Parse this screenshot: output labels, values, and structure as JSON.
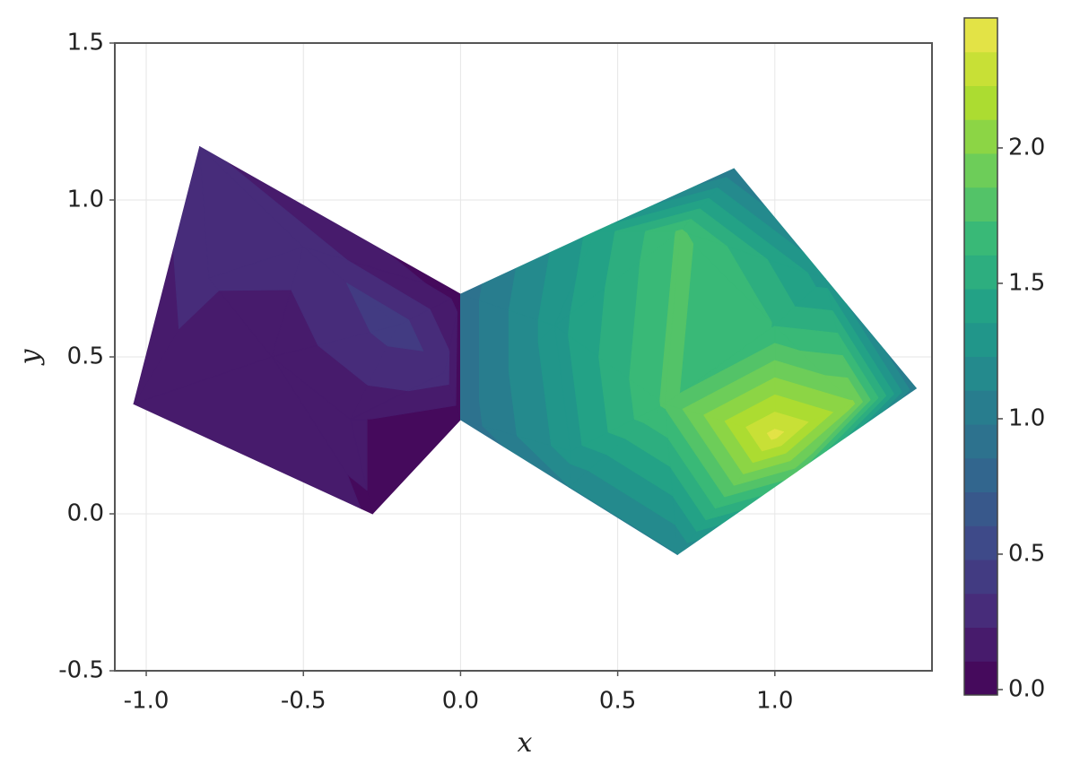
{
  "chart_data": {
    "type": "contourf",
    "x_label": "x",
    "y_label": "y",
    "xlim": [
      -1.1,
      1.5
    ],
    "ylim": [
      -0.5,
      1.5
    ],
    "xticks": [
      {
        "value": -1,
        "label": "-1.0"
      },
      -0.5,
      {
        "value": 0,
        "label": "0.0"
      },
      0.5,
      {
        "value": 1,
        "label": "1.0"
      }
    ],
    "yticks": [
      -0.5,
      {
        "value": 0,
        "label": "0.0"
      },
      0.5,
      {
        "value": 1,
        "label": "1.0"
      },
      1.5
    ],
    "grid": true,
    "x": [
      -1.04,
      -0.83,
      0,
      0,
      -0.28,
      -0.6,
      -0.5,
      -0.2,
      -0.8,
      -0.35,
      -0.05,
      0,
      0,
      0.87,
      1.45,
      0.69,
      0.3,
      0.7,
      0.65,
      1.0,
      1.0,
      0.35,
      1.25,
      0.43,
      1.16,
      1.07,
      0.345
    ],
    "y": [
      0.35,
      1.17,
      0.7,
      0.3,
      0,
      0.5,
      0.85,
      0.6,
      0.75,
      0.3,
      0.45,
      0.3,
      0.7,
      1.1,
      0.4,
      -0.13,
      0.6,
      0.9,
      0.35,
      0.6,
      0.25,
      0.2,
      0.35,
      0.9,
      0.75,
      0.135,
      0.085
    ],
    "z": [
      0.2,
      0.25,
      0.05,
      0.02,
      0.1,
      0.12,
      0.3,
      0.42,
      0.25,
      0.12,
      0.3,
      0.9,
      0.9,
      1.0,
      1.0,
      1.1,
      1.3,
      1.75,
      1.75,
      1.6,
      2.4,
      1.3,
      2.0,
      1.4,
      1.3,
      1.8,
      1.1
    ],
    "triangles": [
      [
        0,
        8,
        5
      ],
      [
        0,
        1,
        8
      ],
      [
        8,
        1,
        6
      ],
      [
        8,
        6,
        5
      ],
      [
        1,
        2,
        6
      ],
      [
        6,
        2,
        7
      ],
      [
        6,
        7,
        5
      ],
      [
        5,
        7,
        9
      ],
      [
        7,
        10,
        9
      ],
      [
        7,
        2,
        10
      ],
      [
        2,
        3,
        10
      ],
      [
        10,
        3,
        9
      ],
      [
        9,
        3,
        4
      ],
      [
        5,
        9,
        4
      ],
      [
        0,
        5,
        4
      ],
      [
        11,
        12,
        16
      ],
      [
        12,
        23,
        16
      ],
      [
        23,
        17,
        16
      ],
      [
        23,
        13,
        17
      ],
      [
        13,
        24,
        17
      ],
      [
        17,
        24,
        19
      ],
      [
        24,
        14,
        22
      ],
      [
        24,
        22,
        19
      ],
      [
        19,
        22,
        20
      ],
      [
        22,
        14,
        25
      ],
      [
        22,
        25,
        20
      ],
      [
        20,
        25,
        15
      ],
      [
        18,
        20,
        15
      ],
      [
        18,
        15,
        26
      ],
      [
        21,
        18,
        26
      ],
      [
        11,
        21,
        26
      ],
      [
        11,
        16,
        21
      ],
      [
        16,
        18,
        21
      ],
      [
        16,
        17,
        18
      ],
      [
        17,
        19,
        18
      ],
      [
        19,
        20,
        18
      ]
    ],
    "levels": 20,
    "colormap": [
      "#440154",
      "#482878",
      "#3e4989",
      "#31688e",
      "#26828e",
      "#1f9e89",
      "#35b779",
      "#6ece58",
      "#b5de2b",
      "#f0e44e"
    ],
    "clim": [
      -0.02,
      2.48
    ],
    "colorbar_ticks": [
      {
        "value": 0,
        "label": "0.0"
      },
      0.5,
      {
        "value": 1,
        "label": "1.0"
      },
      1.5,
      {
        "value": 2,
        "label": "2.0"
      }
    ]
  }
}
